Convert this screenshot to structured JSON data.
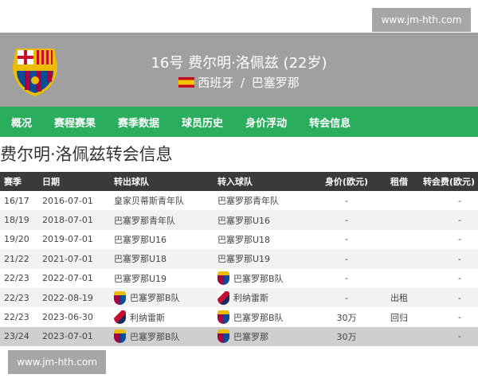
{
  "watermark": "www.jm-hth.com",
  "header": {
    "title": "16号 费尔明·洛佩兹 (22岁)",
    "nationality": "西班牙",
    "club": "巴塞罗那",
    "separator": " / "
  },
  "nav": [
    "概况",
    "赛程赛果",
    "赛季数据",
    "球员历史",
    "身价浮动",
    "转会信息"
  ],
  "section_title": "费尔明·洛佩兹转会信息",
  "table": {
    "headers": [
      "赛季",
      "日期",
      "转出球队",
      "转入球队",
      "身价(欧元)",
      "租借",
      "转会费(欧元)"
    ],
    "rows": [
      {
        "season": "16/17",
        "date": "2016-07-01",
        "from": "皇家贝蒂斯青年队",
        "from_icon": "",
        "to": "巴塞罗那青年队",
        "to_icon": "",
        "value": "-",
        "loan": "",
        "fee": "-"
      },
      {
        "season": "18/19",
        "date": "2018-07-01",
        "from": "巴塞罗那青年队",
        "from_icon": "",
        "to": "巴塞罗那U16",
        "to_icon": "",
        "value": "-",
        "loan": "",
        "fee": "-"
      },
      {
        "season": "19/20",
        "date": "2019-07-01",
        "from": "巴塞罗那U16",
        "from_icon": "",
        "to": "巴塞罗那U18",
        "to_icon": "",
        "value": "-",
        "loan": "",
        "fee": "-"
      },
      {
        "season": "21/22",
        "date": "2021-07-01",
        "from": "巴塞罗那U18",
        "from_icon": "",
        "to": "巴塞罗那U19",
        "to_icon": "",
        "value": "-",
        "loan": "",
        "fee": "-"
      },
      {
        "season": "22/23",
        "date": "2022-07-01",
        "from": "巴塞罗那U19",
        "from_icon": "",
        "to": "巴塞罗那B队",
        "to_icon": "fcb",
        "value": "-",
        "loan": "",
        "fee": "-"
      },
      {
        "season": "22/23",
        "date": "2022-08-19",
        "from": "巴塞罗那B队",
        "from_icon": "fcb",
        "to": "利纳雷斯",
        "to_icon": "lin",
        "value": "-",
        "loan": "出租",
        "fee": "-"
      },
      {
        "season": "22/23",
        "date": "2023-06-30",
        "from": "利纳雷斯",
        "from_icon": "lin",
        "to": "巴塞罗那B队",
        "to_icon": "fcb",
        "value": "30万",
        "loan": "回归",
        "fee": "-"
      },
      {
        "season": "23/24",
        "date": "2023-07-01",
        "from": "巴塞罗那B队",
        "from_icon": "fcb",
        "to": "巴塞罗那",
        "to_icon": "fcb",
        "value": "30万",
        "loan": "",
        "fee": "-"
      }
    ]
  }
}
